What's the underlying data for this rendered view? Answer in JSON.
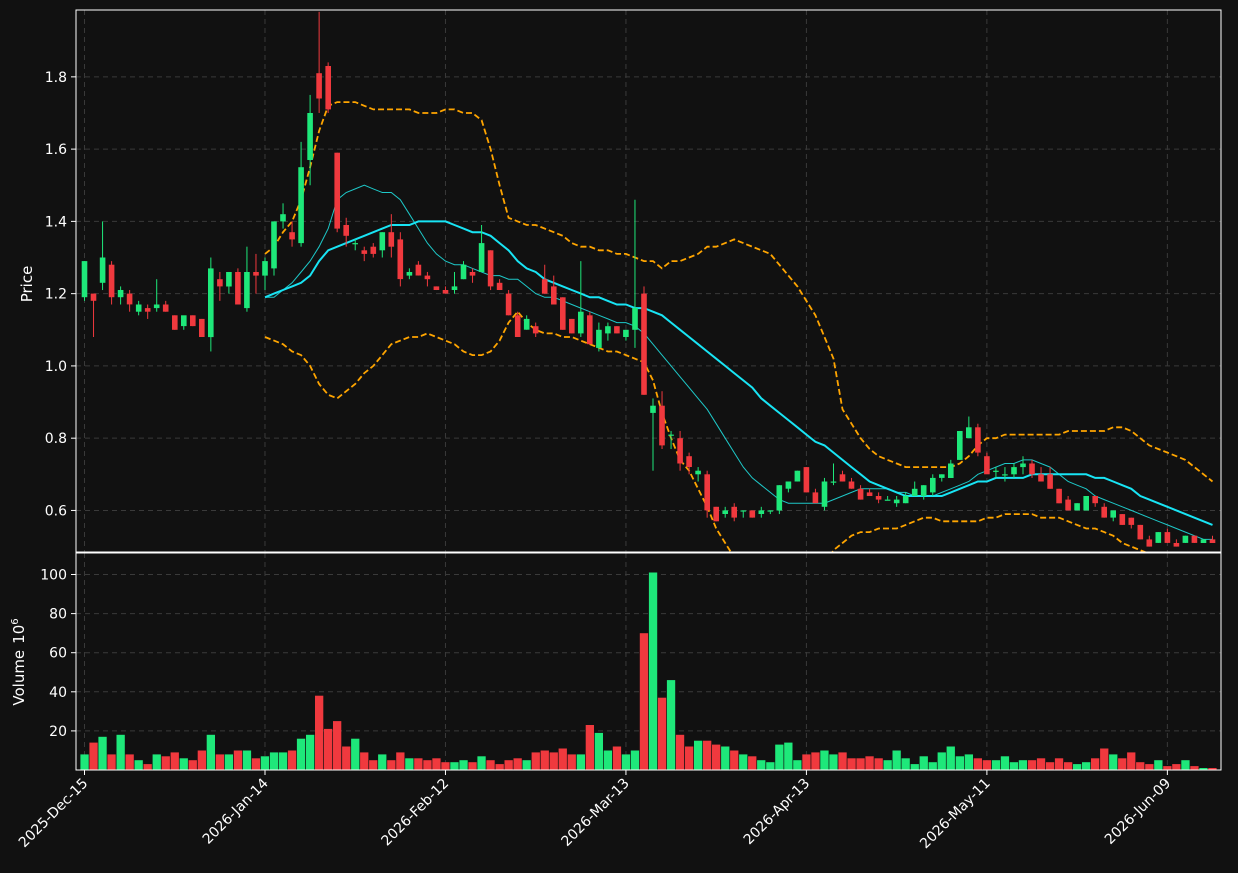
{
  "chart_data": {
    "type": "candlestick",
    "colors": {
      "background": "#111111",
      "up": "#1ee87a",
      "down": "#f0393e",
      "ma_fast": "#1ec8c8",
      "ma_slow": "#18e4f4",
      "bands": "#ffa500",
      "grid": "#3a3a3a",
      "axis": "#ffffff"
    },
    "price_panel": {
      "ylabel": "Price",
      "ylim": [
        0.485,
        1.985
      ],
      "yticks": [
        0.6,
        0.8,
        1.0,
        1.2,
        1.4,
        1.6,
        1.8
      ],
      "ytick_labels": [
        "0.6",
        "0.8",
        "1.0",
        "1.2",
        "1.4",
        "1.6",
        "1.8"
      ]
    },
    "volume_panel": {
      "ylabel": "Volume",
      "ylabel_exp": "10",
      "ylabel_sup": "6",
      "ylim": [
        0,
        111
      ],
      "yticks": [
        20,
        40,
        60,
        80,
        100
      ],
      "ytick_labels": [
        "20",
        "40",
        "60",
        "80",
        "100"
      ]
    },
    "x_ticks": [
      {
        "index": 0,
        "label": "2025-Dec-15"
      },
      {
        "index": 20,
        "label": "2026-Jan-14"
      },
      {
        "index": 40,
        "label": "2026-Feb-12"
      },
      {
        "index": 60,
        "label": "2026-Mar-13"
      },
      {
        "index": 80,
        "label": "2026-Apr-13"
      },
      {
        "index": 100,
        "label": "2026-May-11"
      },
      {
        "index": 120,
        "label": "2026-Jun-09"
      }
    ],
    "candles": [
      [
        1.19,
        1.29,
        1.18,
        1.29
      ],
      [
        1.2,
        1.2,
        1.08,
        1.18
      ],
      [
        1.23,
        1.4,
        1.21,
        1.3
      ],
      [
        1.28,
        1.29,
        1.17,
        1.19
      ],
      [
        1.19,
        1.22,
        1.17,
        1.21
      ],
      [
        1.2,
        1.21,
        1.15,
        1.17
      ],
      [
        1.15,
        1.18,
        1.14,
        1.17
      ],
      [
        1.16,
        1.17,
        1.13,
        1.15
      ],
      [
        1.16,
        1.24,
        1.15,
        1.17
      ],
      [
        1.17,
        1.18,
        1.15,
        1.15
      ],
      [
        1.14,
        1.14,
        1.1,
        1.1
      ],
      [
        1.11,
        1.13,
        1.1,
        1.14
      ],
      [
        1.14,
        1.14,
        1.11,
        1.11
      ],
      [
        1.13,
        1.13,
        1.08,
        1.08
      ],
      [
        1.08,
        1.3,
        1.04,
        1.27
      ],
      [
        1.24,
        1.26,
        1.18,
        1.22
      ],
      [
        1.22,
        1.26,
        1.2,
        1.26
      ],
      [
        1.26,
        1.27,
        1.17,
        1.17
      ],
      [
        1.16,
        1.33,
        1.15,
        1.26
      ],
      [
        1.26,
        1.31,
        1.2,
        1.25
      ],
      [
        1.25,
        1.3,
        1.21,
        1.29
      ],
      [
        1.27,
        1.4,
        1.25,
        1.4
      ],
      [
        1.4,
        1.45,
        1.38,
        1.42
      ],
      [
        1.37,
        1.4,
        1.33,
        1.35
      ],
      [
        1.34,
        1.62,
        1.33,
        1.55
      ],
      [
        1.57,
        1.75,
        1.5,
        1.7
      ],
      [
        1.81,
        1.98,
        1.7,
        1.74
      ],
      [
        1.83,
        1.84,
        1.7,
        1.71
      ],
      [
        1.59,
        1.59,
        1.37,
        1.38
      ],
      [
        1.39,
        1.41,
        1.33,
        1.36
      ],
      [
        1.34,
        1.35,
        1.32,
        1.34
      ],
      [
        1.32,
        1.33,
        1.29,
        1.31
      ],
      [
        1.33,
        1.34,
        1.3,
        1.31
      ],
      [
        1.32,
        1.37,
        1.3,
        1.37
      ],
      [
        1.37,
        1.42,
        1.3,
        1.33
      ],
      [
        1.35,
        1.37,
        1.22,
        1.24
      ],
      [
        1.25,
        1.27,
        1.24,
        1.26
      ],
      [
        1.28,
        1.29,
        1.25,
        1.25
      ],
      [
        1.25,
        1.26,
        1.22,
        1.24
      ],
      [
        1.22,
        1.22,
        1.21,
        1.21
      ],
      [
        1.21,
        1.22,
        1.2,
        1.2
      ],
      [
        1.21,
        1.26,
        1.2,
        1.22
      ],
      [
        1.24,
        1.29,
        1.24,
        1.28
      ],
      [
        1.26,
        1.27,
        1.23,
        1.25
      ],
      [
        1.26,
        1.39,
        1.26,
        1.34
      ],
      [
        1.32,
        1.32,
        1.21,
        1.22
      ],
      [
        1.23,
        1.24,
        1.21,
        1.21
      ],
      [
        1.2,
        1.21,
        1.14,
        1.14
      ],
      [
        1.14,
        1.15,
        1.08,
        1.08
      ],
      [
        1.1,
        1.14,
        1.1,
        1.13
      ],
      [
        1.11,
        1.12,
        1.08,
        1.09
      ],
      [
        1.24,
        1.28,
        1.2,
        1.2
      ],
      [
        1.22,
        1.25,
        1.17,
        1.17
      ],
      [
        1.19,
        1.19,
        1.1,
        1.1
      ],
      [
        1.13,
        1.13,
        1.09,
        1.09
      ],
      [
        1.09,
        1.29,
        1.08,
        1.15
      ],
      [
        1.14,
        1.15,
        1.06,
        1.06
      ],
      [
        1.05,
        1.12,
        1.04,
        1.1
      ],
      [
        1.09,
        1.12,
        1.07,
        1.11
      ],
      [
        1.11,
        1.11,
        1.09,
        1.09
      ],
      [
        1.08,
        1.09,
        1.07,
        1.1
      ],
      [
        1.1,
        1.46,
        1.05,
        1.16
      ],
      [
        1.2,
        1.22,
        0.92,
        0.92
      ],
      [
        0.87,
        0.91,
        0.71,
        0.89
      ],
      [
        0.89,
        0.93,
        0.77,
        0.78
      ],
      [
        0.81,
        0.82,
        0.77,
        0.81
      ],
      [
        0.8,
        0.82,
        0.71,
        0.73
      ],
      [
        0.75,
        0.76,
        0.7,
        0.72
      ],
      [
        0.7,
        0.72,
        0.68,
        0.71
      ],
      [
        0.7,
        0.71,
        0.58,
        0.6
      ],
      [
        0.61,
        0.61,
        0.57,
        0.57
      ],
      [
        0.59,
        0.61,
        0.58,
        0.6
      ],
      [
        0.61,
        0.62,
        0.57,
        0.58
      ],
      [
        0.6,
        0.6,
        0.58,
        0.6
      ],
      [
        0.6,
        0.6,
        0.58,
        0.58
      ],
      [
        0.59,
        0.61,
        0.58,
        0.6
      ],
      [
        0.6,
        0.6,
        0.59,
        0.6
      ],
      [
        0.6,
        0.67,
        0.59,
        0.67
      ],
      [
        0.66,
        0.68,
        0.65,
        0.68
      ],
      [
        0.68,
        0.71,
        0.68,
        0.71
      ],
      [
        0.72,
        0.72,
        0.65,
        0.65
      ],
      [
        0.65,
        0.66,
        0.63,
        0.62
      ],
      [
        0.61,
        0.69,
        0.6,
        0.68
      ],
      [
        0.68,
        0.73,
        0.67,
        0.68
      ],
      [
        0.7,
        0.71,
        0.68,
        0.68
      ],
      [
        0.68,
        0.69,
        0.66,
        0.66
      ],
      [
        0.66,
        0.67,
        0.63,
        0.63
      ],
      [
        0.65,
        0.66,
        0.64,
        0.64
      ],
      [
        0.64,
        0.65,
        0.62,
        0.63
      ],
      [
        0.63,
        0.64,
        0.63,
        0.63
      ],
      [
        0.62,
        0.64,
        0.61,
        0.63
      ],
      [
        0.62,
        0.65,
        0.62,
        0.64
      ],
      [
        0.64,
        0.68,
        0.64,
        0.66
      ],
      [
        0.64,
        0.67,
        0.63,
        0.67
      ],
      [
        0.65,
        0.7,
        0.64,
        0.69
      ],
      [
        0.69,
        0.7,
        0.68,
        0.7
      ],
      [
        0.69,
        0.74,
        0.69,
        0.73
      ],
      [
        0.74,
        0.82,
        0.74,
        0.82
      ],
      [
        0.8,
        0.86,
        0.8,
        0.83
      ],
      [
        0.83,
        0.84,
        0.75,
        0.76
      ],
      [
        0.75,
        0.76,
        0.71,
        0.7
      ],
      [
        0.71,
        0.72,
        0.69,
        0.71
      ],
      [
        0.7,
        0.72,
        0.68,
        0.7
      ],
      [
        0.7,
        0.73,
        0.69,
        0.72
      ],
      [
        0.72,
        0.75,
        0.7,
        0.73
      ],
      [
        0.73,
        0.74,
        0.69,
        0.7
      ],
      [
        0.7,
        0.72,
        0.68,
        0.68
      ],
      [
        0.7,
        0.72,
        0.66,
        0.66
      ],
      [
        0.66,
        0.66,
        0.62,
        0.62
      ],
      [
        0.63,
        0.64,
        0.6,
        0.6
      ],
      [
        0.6,
        0.62,
        0.6,
        0.62
      ],
      [
        0.6,
        0.64,
        0.6,
        0.64
      ],
      [
        0.64,
        0.64,
        0.61,
        0.62
      ],
      [
        0.61,
        0.62,
        0.58,
        0.58
      ],
      [
        0.58,
        0.6,
        0.57,
        0.6
      ],
      [
        0.59,
        0.59,
        0.56,
        0.56
      ],
      [
        0.58,
        0.58,
        0.55,
        0.56
      ],
      [
        0.56,
        0.56,
        0.52,
        0.52
      ],
      [
        0.52,
        0.53,
        0.5,
        0.5
      ],
      [
        0.51,
        0.54,
        0.51,
        0.54
      ],
      [
        0.54,
        0.55,
        0.51,
        0.51
      ],
      [
        0.51,
        0.52,
        0.5,
        0.5
      ],
      [
        0.51,
        0.53,
        0.51,
        0.53
      ],
      [
        0.53,
        0.53,
        0.51,
        0.51
      ],
      [
        0.51,
        0.52,
        0.51,
        0.52
      ],
      [
        0.52,
        0.53,
        0.51,
        0.51
      ]
    ],
    "volume": [
      8,
      14,
      17,
      8,
      18,
      8,
      5,
      3,
      8,
      7,
      9,
      6,
      5,
      10,
      18,
      8,
      8,
      10,
      10,
      6,
      7,
      9,
      9,
      10,
      16,
      18,
      38,
      21,
      25,
      12,
      16,
      9,
      5,
      8,
      5,
      9,
      6,
      6,
      5,
      6,
      4,
      4,
      5,
      4,
      7,
      5,
      3,
      5,
      6,
      5,
      9,
      10,
      9,
      11,
      8,
      8,
      23,
      19,
      10,
      12,
      8,
      10,
      70,
      101,
      37,
      46,
      18,
      12,
      15,
      15,
      13,
      12,
      10,
      8,
      7,
      5,
      4,
      13,
      14,
      5,
      8,
      9,
      10,
      8,
      9,
      6,
      6,
      7,
      6,
      5,
      10,
      6,
      3,
      7,
      4,
      9,
      12,
      7,
      8,
      6,
      5,
      5,
      7,
      4,
      5,
      5,
      6,
      4,
      6,
      4,
      3,
      4,
      6,
      11,
      8,
      6,
      9,
      4,
      3,
      5,
      2,
      3,
      5,
      2,
      1,
      1
    ],
    "ma_fast": [
      null,
      null,
      null,
      null,
      null,
      null,
      null,
      null,
      null,
      null,
      null,
      null,
      null,
      null,
      null,
      null,
      null,
      null,
      null,
      null,
      1.19,
      1.19,
      1.21,
      1.23,
      1.26,
      1.29,
      1.33,
      1.38,
      1.46,
      1.48,
      1.49,
      1.5,
      1.49,
      1.48,
      1.48,
      1.46,
      1.42,
      1.38,
      1.34,
      1.31,
      1.29,
      1.28,
      1.28,
      1.27,
      1.26,
      1.25,
      1.25,
      1.24,
      1.24,
      1.22,
      1.2,
      1.19,
      1.19,
      1.18,
      1.17,
      1.16,
      1.15,
      1.14,
      1.13,
      1.12,
      1.12,
      1.11,
      1.09,
      1.06,
      1.03,
      1.0,
      0.97,
      0.94,
      0.91,
      0.88,
      0.84,
      0.8,
      0.76,
      0.72,
      0.69,
      0.67,
      0.65,
      0.63,
      0.62,
      0.62,
      0.62,
      0.62,
      0.62,
      0.63,
      0.64,
      0.65,
      0.66,
      0.66,
      0.66,
      0.66,
      0.65,
      0.65,
      0.64,
      0.64,
      0.64,
      0.65,
      0.66,
      0.67,
      0.68,
      0.7,
      0.71,
      0.72,
      0.73,
      0.73,
      0.74,
      0.74,
      0.73,
      0.72,
      0.7,
      0.68,
      0.67,
      0.66,
      0.64,
      0.63,
      0.62,
      0.61,
      0.6,
      0.59,
      0.58,
      0.57,
      0.56,
      0.55,
      0.54,
      0.53,
      0.52,
      0.52
    ],
    "ma_slow": [
      null,
      null,
      null,
      null,
      null,
      null,
      null,
      null,
      null,
      null,
      null,
      null,
      null,
      null,
      null,
      null,
      null,
      null,
      null,
      null,
      1.19,
      1.2,
      1.21,
      1.22,
      1.23,
      1.25,
      1.29,
      1.32,
      1.33,
      1.34,
      1.35,
      1.36,
      1.37,
      1.38,
      1.39,
      1.39,
      1.39,
      1.4,
      1.4,
      1.4,
      1.4,
      1.39,
      1.38,
      1.37,
      1.37,
      1.36,
      1.34,
      1.32,
      1.29,
      1.27,
      1.26,
      1.24,
      1.23,
      1.22,
      1.21,
      1.2,
      1.19,
      1.19,
      1.18,
      1.17,
      1.17,
      1.16,
      1.16,
      1.15,
      1.14,
      1.12,
      1.1,
      1.08,
      1.06,
      1.04,
      1.02,
      1.0,
      0.98,
      0.96,
      0.94,
      0.91,
      0.89,
      0.87,
      0.85,
      0.83,
      0.81,
      0.79,
      0.78,
      0.76,
      0.74,
      0.72,
      0.7,
      0.68,
      0.67,
      0.66,
      0.65,
      0.64,
      0.64,
      0.64,
      0.64,
      0.64,
      0.65,
      0.66,
      0.67,
      0.68,
      0.68,
      0.69,
      0.69,
      0.69,
      0.69,
      0.7,
      0.7,
      0.7,
      0.7,
      0.7,
      0.7,
      0.7,
      0.69,
      0.69,
      0.68,
      0.67,
      0.66,
      0.64,
      0.63,
      0.62,
      0.61,
      0.6,
      0.59,
      0.58,
      0.57,
      0.56
    ],
    "band_upper": [
      null,
      null,
      null,
      null,
      null,
      null,
      null,
      null,
      null,
      null,
      null,
      null,
      null,
      null,
      null,
      null,
      null,
      null,
      null,
      null,
      1.31,
      1.33,
      1.37,
      1.4,
      1.46,
      1.55,
      1.65,
      1.72,
      1.73,
      1.73,
      1.73,
      1.72,
      1.71,
      1.71,
      1.71,
      1.71,
      1.71,
      1.7,
      1.7,
      1.7,
      1.71,
      1.71,
      1.7,
      1.7,
      1.68,
      1.6,
      1.5,
      1.41,
      1.4,
      1.39,
      1.39,
      1.38,
      1.37,
      1.36,
      1.34,
      1.33,
      1.33,
      1.32,
      1.32,
      1.31,
      1.31,
      1.3,
      1.29,
      1.29,
      1.27,
      1.29,
      1.29,
      1.3,
      1.31,
      1.33,
      1.33,
      1.34,
      1.35,
      1.34,
      1.33,
      1.32,
      1.31,
      1.28,
      1.25,
      1.22,
      1.18,
      1.14,
      1.08,
      1.02,
      0.88,
      0.84,
      0.8,
      0.77,
      0.75,
      0.74,
      0.73,
      0.72,
      0.72,
      0.72,
      0.72,
      0.72,
      0.72,
      0.73,
      0.75,
      0.78,
      0.8,
      0.8,
      0.81,
      0.81,
      0.81,
      0.81,
      0.81,
      0.81,
      0.81,
      0.82,
      0.82,
      0.82,
      0.82,
      0.82,
      0.83,
      0.83,
      0.82,
      0.8,
      0.78,
      0.77,
      0.76,
      0.75,
      0.74,
      0.72,
      0.7,
      0.68
    ],
    "band_lower": [
      null,
      null,
      null,
      null,
      null,
      null,
      null,
      null,
      null,
      null,
      null,
      null,
      null,
      null,
      null,
      null,
      null,
      null,
      null,
      null,
      1.08,
      1.07,
      1.06,
      1.04,
      1.03,
      1.0,
      0.95,
      0.92,
      0.91,
      0.93,
      0.95,
      0.98,
      1.0,
      1.03,
      1.06,
      1.07,
      1.08,
      1.08,
      1.09,
      1.08,
      1.07,
      1.06,
      1.04,
      1.03,
      1.03,
      1.04,
      1.07,
      1.12,
      1.15,
      1.12,
      1.1,
      1.09,
      1.09,
      1.08,
      1.08,
      1.07,
      1.06,
      1.05,
      1.04,
      1.04,
      1.03,
      1.02,
      1.01,
      0.96,
      0.87,
      0.8,
      0.74,
      0.71,
      0.66,
      0.61,
      0.55,
      0.51,
      0.47,
      0.44,
      0.42,
      0.4,
      0.38,
      0.36,
      0.34,
      0.34,
      0.36,
      0.4,
      0.45,
      0.49,
      0.51,
      0.53,
      0.54,
      0.54,
      0.55,
      0.55,
      0.55,
      0.56,
      0.57,
      0.58,
      0.58,
      0.57,
      0.57,
      0.57,
      0.57,
      0.57,
      0.58,
      0.58,
      0.59,
      0.59,
      0.59,
      0.59,
      0.58,
      0.58,
      0.58,
      0.57,
      0.56,
      0.55,
      0.55,
      0.54,
      0.53,
      0.51,
      0.5,
      0.49,
      0.48,
      0.47,
      0.46,
      0.45,
      0.44,
      0.43,
      0.42,
      0.41
    ]
  }
}
